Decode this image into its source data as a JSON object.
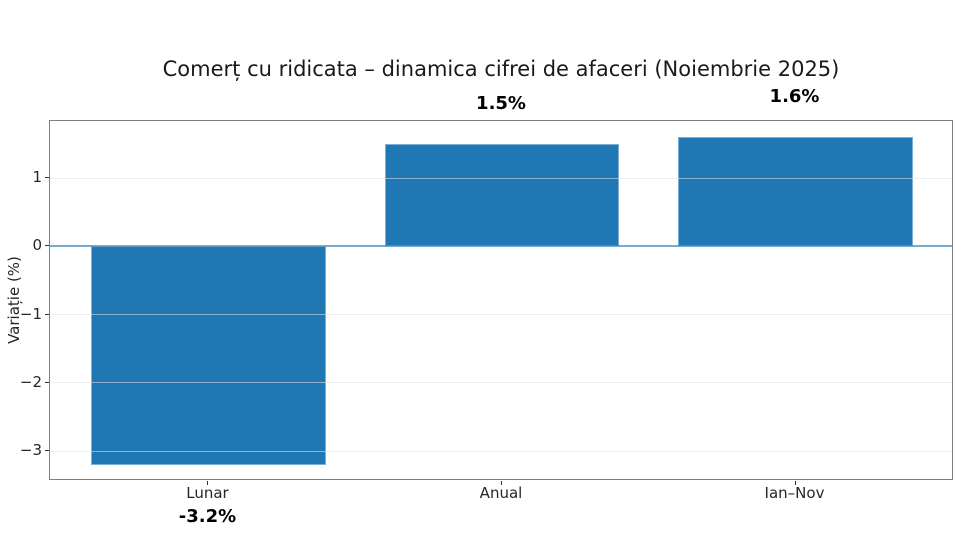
{
  "chart_data": {
    "type": "bar",
    "title": "Comerț cu ridicata – dinamica cifrei de afaceri (Noiembrie 2025)",
    "xlabel": "",
    "ylabel": "Variație (%)",
    "categories": [
      "Lunar",
      "Anual",
      "Ian–Nov"
    ],
    "values": [
      -3.2,
      1.5,
      1.6
    ],
    "value_labels": [
      "-3.2%",
      "1.5%",
      "1.6%"
    ],
    "yticks": [
      1,
      0,
      -1,
      -2,
      -3
    ],
    "ytick_labels": [
      "1",
      "0",
      "−1",
      "−2",
      "−3"
    ],
    "ylim": [
      -3.44,
      1.84
    ],
    "xlim": [
      -0.54,
      2.54
    ],
    "bar_width": 0.8,
    "grid": true,
    "legend": false,
    "zero_line": true,
    "colors": {
      "bar": "#1f77b4",
      "bar_edge": "#7eaed3",
      "zero_line": "rgba(31,119,180,0.6)",
      "grid": "#e1e1e1",
      "spine": "#7f7f7f",
      "tick": "#333333",
      "text": "#1a1a1a"
    }
  }
}
